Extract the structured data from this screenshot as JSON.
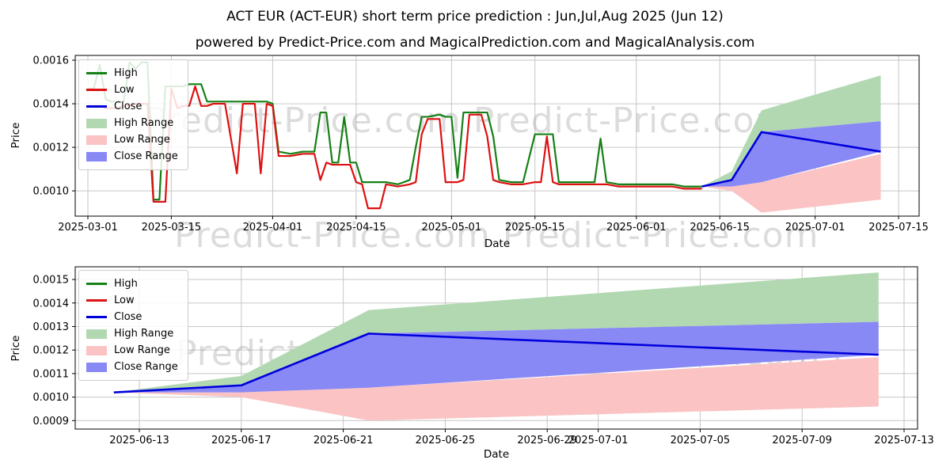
{
  "header": {
    "title": "ACT EUR (ACT-EUR) short term price prediction : Jun,Jul,Aug 2025 (Jun 12)",
    "subtitle": "powered by Predict-Price.com and MagicalPrediction.com and MagicalAnalysis.com"
  },
  "watermark_middle": "Predict-Price.com   Predict-Price.com",
  "colors": {
    "high_line": "#158015",
    "low_line": "#dd1111",
    "close_line": "#0000dd",
    "high_range_fill": "#b2d8b2",
    "low_range_fill": "#fbc3c3",
    "close_range_fill": "#8989f5",
    "grid": "#c6c6c6",
    "frame": "#000000",
    "watermark": "rgba(128,128,128,0.28)"
  },
  "chart_data": [
    {
      "type": "line",
      "position": "top",
      "ylabel": "Price",
      "xlabel": "Date",
      "watermark": "Predict-Price.com   Predict-Price.com",
      "grid": true,
      "legend_position": "upper left",
      "yticks": [
        "0.0010",
        "0.0012",
        "0.0014",
        "0.0016"
      ],
      "xticks": [
        "2025-03-01",
        "2025-03-15",
        "2025-04-01",
        "2025-04-15",
        "2025-05-01",
        "2025-05-15",
        "2025-06-01",
        "2025-06-15",
        "2025-07-01",
        "2025-07-15"
      ],
      "ylim": [
        0.000884,
        0.001622
      ],
      "xlim": [
        "2025-02-27",
        "2025-07-19"
      ],
      "legend": [
        {
          "label": "High",
          "swatch": "line",
          "color": "#158015"
        },
        {
          "label": "Low",
          "swatch": "line",
          "color": "#dd1111"
        },
        {
          "label": "Close",
          "swatch": "line",
          "color": "#0000dd"
        },
        {
          "label": "High Range",
          "swatch": "patch",
          "color": "#b2d8b2"
        },
        {
          "label": "Low Range",
          "swatch": "patch",
          "color": "#fbc3c3"
        },
        {
          "label": "Close Range",
          "swatch": "patch",
          "color": "#8989f5"
        }
      ],
      "series_refs": [
        "history",
        "prediction"
      ]
    },
    {
      "type": "line",
      "position": "bottom",
      "ylabel": "Price",
      "xlabel": "Date",
      "watermark": "Predict-Price.com   Predict-Price.com   P",
      "grid": true,
      "legend_position": "upper left",
      "yticks": [
        "0.0009",
        "0.0010",
        "0.0011",
        "0.0012",
        "0.0013",
        "0.0014",
        "0.0015"
      ],
      "xticks": [
        "2025-06-13",
        "2025-06-17",
        "2025-06-21",
        "2025-06-25",
        "2025-06-29",
        "2025-07-01",
        "2025-07-05",
        "2025-07-09",
        "2025-07-13"
      ],
      "ylim": [
        0.000864,
        0.001554
      ],
      "xlim": [
        "2025-06-10",
        "2025-07-14"
      ],
      "legend": [
        {
          "label": "High",
          "swatch": "line",
          "color": "#158015"
        },
        {
          "label": "Low",
          "swatch": "line",
          "color": "#dd1111"
        },
        {
          "label": "Close",
          "swatch": "line",
          "color": "#0000dd"
        },
        {
          "label": "High Range",
          "swatch": "patch",
          "color": "#b2d8b2"
        },
        {
          "label": "Low Range",
          "swatch": "patch",
          "color": "#fbc3c3"
        },
        {
          "label": "Close Range",
          "swatch": "patch",
          "color": "#8989f5"
        }
      ],
      "series_refs": [
        "prediction"
      ]
    }
  ],
  "history": {
    "dates": [
      "2025-03-01",
      "2025-03-02",
      "2025-03-03",
      "2025-03-04",
      "2025-03-05",
      "2025-03-06",
      "2025-03-07",
      "2025-03-08",
      "2025-03-09",
      "2025-03-10",
      "2025-03-11",
      "2025-03-12",
      "2025-03-13",
      "2025-03-14",
      "2025-03-15",
      "2025-03-16",
      "2025-03-17",
      "2025-03-18",
      "2025-03-19",
      "2025-03-20",
      "2025-03-21",
      "2025-03-22",
      "2025-03-24",
      "2025-03-26",
      "2025-03-27",
      "2025-03-29",
      "2025-03-30",
      "2025-03-31",
      "2025-04-01",
      "2025-04-02",
      "2025-04-04",
      "2025-04-06",
      "2025-04-08",
      "2025-04-09",
      "2025-04-10",
      "2025-04-11",
      "2025-04-12",
      "2025-04-13",
      "2025-04-14",
      "2025-04-15",
      "2025-04-16",
      "2025-04-17",
      "2025-04-19",
      "2025-04-20",
      "2025-04-22",
      "2025-04-24",
      "2025-04-25",
      "2025-04-26",
      "2025-04-27",
      "2025-04-29",
      "2025-04-30",
      "2025-05-01",
      "2025-05-02",
      "2025-05-03",
      "2025-05-04",
      "2025-05-06",
      "2025-05-07",
      "2025-05-08",
      "2025-05-09",
      "2025-05-11",
      "2025-05-13",
      "2025-05-15",
      "2025-05-16",
      "2025-05-17",
      "2025-05-18",
      "2025-05-19",
      "2025-05-21",
      "2025-05-23",
      "2025-05-25",
      "2025-05-26",
      "2025-05-27",
      "2025-05-29",
      "2025-06-01",
      "2025-06-04",
      "2025-06-07",
      "2025-06-09",
      "2025-06-12"
    ],
    "high": [
      0.00147,
      0.00147,
      0.00158,
      0.00142,
      0.00141,
      0.00141,
      0.00141,
      0.00159,
      0.00156,
      0.00159,
      0.00159,
      0.00096,
      0.00096,
      0.00148,
      0.00148,
      0.00148,
      0.00148,
      0.00149,
      0.00149,
      0.00149,
      0.00141,
      0.00141,
      0.00141,
      0.00141,
      0.00141,
      0.00141,
      0.00141,
      0.00141,
      0.0014,
      0.00118,
      0.00117,
      0.00118,
      0.00118,
      0.00136,
      0.00136,
      0.00113,
      0.00113,
      0.00134,
      0.00113,
      0.00113,
      0.00104,
      0.00104,
      0.00104,
      0.00104,
      0.00103,
      0.00105,
      0.0012,
      0.00134,
      0.00134,
      0.00135,
      0.00134,
      0.00134,
      0.00106,
      0.00136,
      0.00136,
      0.00136,
      0.00136,
      0.00125,
      0.00105,
      0.00104,
      0.00104,
      0.00126,
      0.00126,
      0.00126,
      0.00126,
      0.00104,
      0.00104,
      0.00104,
      0.00104,
      0.00124,
      0.00104,
      0.00103,
      0.00103,
      0.00103,
      0.00103,
      0.00102,
      0.00102
    ],
    "low": [
      0.00139,
      0.00139,
      0.00139,
      0.00138,
      0.00138,
      0.00138,
      0.00139,
      0.00139,
      0.0014,
      0.0014,
      0.0014,
      0.00095,
      0.00095,
      0.00095,
      0.00147,
      0.00138,
      0.00139,
      0.00139,
      0.00148,
      0.00139,
      0.00139,
      0.0014,
      0.0014,
      0.00108,
      0.0014,
      0.0014,
      0.00108,
      0.0014,
      0.00139,
      0.00116,
      0.00116,
      0.00117,
      0.00117,
      0.00105,
      0.00113,
      0.00112,
      0.00112,
      0.00112,
      0.00112,
      0.00104,
      0.00103,
      0.00092,
      0.00092,
      0.00103,
      0.00102,
      0.00103,
      0.00104,
      0.00126,
      0.00133,
      0.00133,
      0.00104,
      0.00104,
      0.00104,
      0.00105,
      0.00135,
      0.00135,
      0.00125,
      0.00105,
      0.00104,
      0.00103,
      0.00103,
      0.00104,
      0.00104,
      0.00125,
      0.00104,
      0.00103,
      0.00103,
      0.00103,
      0.00103,
      0.00103,
      0.00103,
      0.00102,
      0.00102,
      0.00102,
      0.00102,
      0.00101,
      0.00101
    ]
  },
  "prediction": {
    "dates": [
      "2025-06-12",
      "2025-06-17",
      "2025-06-22",
      "2025-07-12"
    ],
    "close": [
      0.00102,
      0.00105,
      0.00127,
      0.00118
    ],
    "high_range": {
      "upper": [
        0.00102,
        0.00109,
        0.00137,
        0.00153
      ],
      "lower": [
        0.00102,
        0.00105,
        0.00127,
        0.00132
      ]
    },
    "close_range": {
      "upper": [
        0.00102,
        0.00105,
        0.00127,
        0.00132
      ],
      "lower": [
        0.00102,
        0.00102,
        0.00104,
        0.00118
      ]
    },
    "low_range": {
      "upper": [
        0.00102,
        0.00102,
        0.00104,
        0.00117
      ],
      "lower": [
        0.00102,
        0.001,
        0.0009,
        0.00096
      ]
    }
  }
}
